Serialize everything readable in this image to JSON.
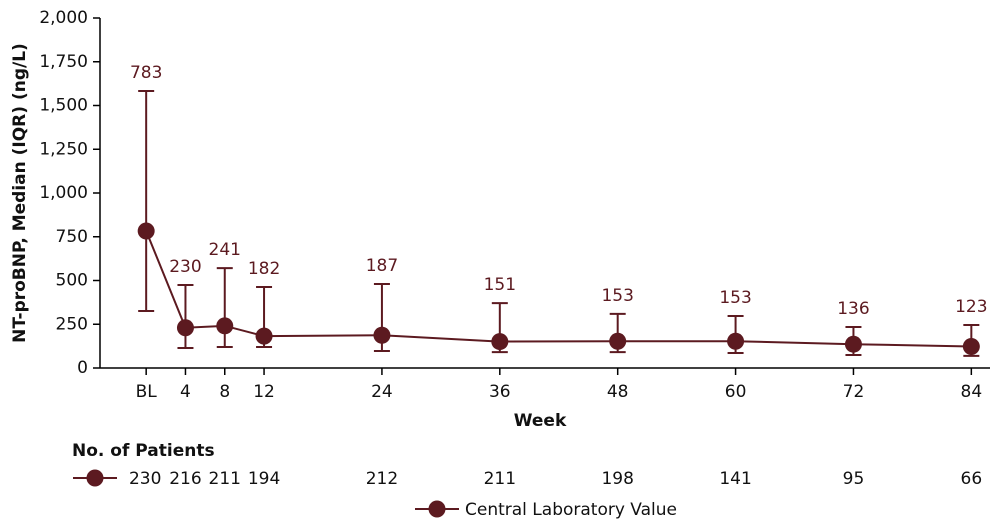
{
  "chart_data": {
    "type": "errorline",
    "x_label": "Week",
    "y_label": "NT-proBNP, Median (IQR) (ng/L)",
    "x": [
      0,
      4,
      8,
      12,
      24,
      36,
      48,
      60,
      72,
      84
    ],
    "series": [
      {
        "name": "Central Laboratory Value",
        "color": "#5c1a20",
        "values": [
          783,
          230,
          241,
          182,
          187,
          151,
          153,
          153,
          136,
          123
        ],
        "lower": [
          326,
          114,
          120,
          120,
          97,
          91,
          91,
          86,
          74,
          69
        ],
        "upper": [
          1583,
          474,
          571,
          463,
          480,
          371,
          309,
          297,
          234,
          246
        ]
      }
    ],
    "xlim": [
      -4.7,
      85.9
    ],
    "xticks": [
      {
        "value": 0,
        "label": "BL"
      },
      4,
      8,
      12,
      24,
      36,
      48,
      60,
      72,
      84
    ],
    "ylim": [
      0,
      2000
    ],
    "yticks": [
      0,
      250,
      500,
      750,
      {
        "value": 1000,
        "label": "1,000"
      },
      {
        "value": 1250,
        "label": "1,250"
      },
      {
        "value": 1500,
        "label": "1,500"
      },
      {
        "value": 1750,
        "label": "1,750"
      },
      {
        "value": 2000,
        "label": "2,000"
      }
    ],
    "patients_title": "No. of Patients",
    "patients": [
      230,
      216,
      211,
      194,
      212,
      211,
      198,
      141,
      95,
      66
    ]
  }
}
